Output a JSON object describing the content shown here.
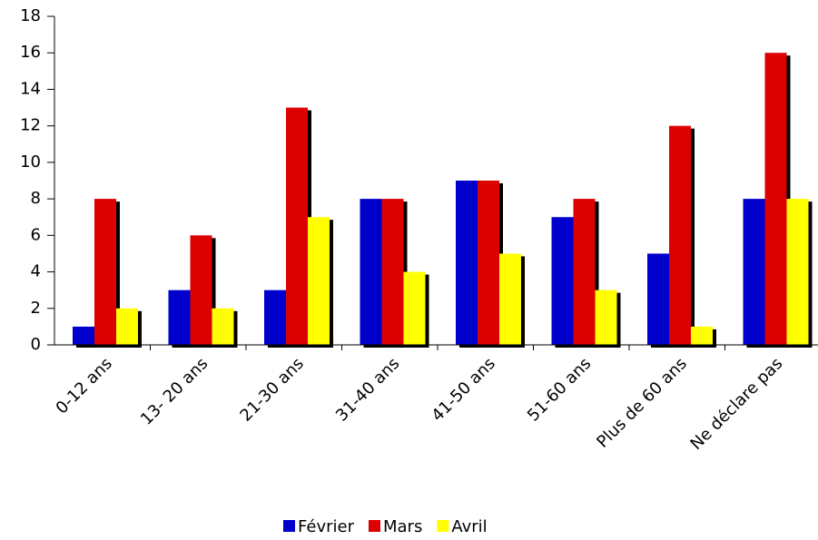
{
  "chart_data": {
    "type": "bar",
    "categories": [
      "0-12 ans",
      "13- 20 ans",
      "21-30 ans",
      "31-40 ans",
      "41-50 ans",
      "51-60 ans",
      "Plus de 60 ans",
      "Ne déclare pas"
    ],
    "series": [
      {
        "name": "Février",
        "color": "#0000cc",
        "values": [
          1,
          3,
          3,
          8,
          9,
          7,
          5,
          8
        ]
      },
      {
        "name": "Mars",
        "color": "#dd0000",
        "values": [
          8,
          6,
          13,
          8,
          9,
          8,
          12,
          16
        ]
      },
      {
        "name": "Avril",
        "color": "#ffff00",
        "values": [
          2,
          2,
          7,
          4,
          5,
          3,
          1,
          8
        ]
      }
    ],
    "ylim": [
      0,
      18
    ],
    "yticks": [
      0,
      2,
      4,
      6,
      8,
      10,
      12,
      14,
      16,
      18
    ],
    "grid": false,
    "legend": "bottom"
  }
}
